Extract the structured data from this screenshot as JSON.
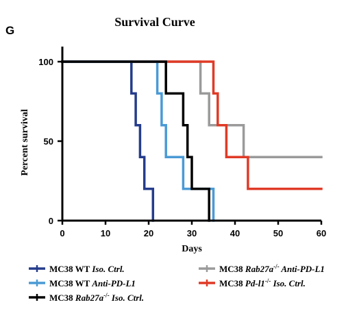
{
  "chart_data": {
    "type": "line",
    "panel_label": "G",
    "title": "Survival Curve",
    "xlabel": "Days",
    "ylabel": "Percent survival",
    "xlim": [
      0,
      60
    ],
    "ylim": [
      0,
      100
    ],
    "xticks": [
      "0",
      "10",
      "20",
      "30",
      "40",
      "50",
      "60"
    ],
    "yticks": [
      "0",
      "50",
      "100"
    ],
    "grid": false,
    "legend_position": "bottom",
    "series": [
      {
        "name": "MC38 WT Iso. Ctrl.",
        "legend_parts": [
          [
            "MC38 WT ",
            ""
          ],
          [
            "Iso. Ctrl.",
            "italic"
          ]
        ],
        "color": "#253c8c",
        "steps": [
          [
            0,
            100
          ],
          [
            16,
            80
          ],
          [
            17,
            60
          ],
          [
            18,
            40
          ],
          [
            19,
            20
          ],
          [
            21,
            0
          ]
        ],
        "end_x": 21
      },
      {
        "name": "MC38 WT Anti-PD-L1",
        "legend_parts": [
          [
            "MC38 WT ",
            ""
          ],
          [
            "Anti-PD-L1",
            "italic"
          ]
        ],
        "color": "#4a9ad5",
        "steps": [
          [
            0,
            100
          ],
          [
            22,
            80
          ],
          [
            23,
            60
          ],
          [
            24,
            40
          ],
          [
            28,
            20
          ],
          [
            35,
            0
          ]
        ],
        "end_x": 35
      },
      {
        "name": "MC38 Rab27a-/- Iso. Ctrl.",
        "legend_parts": [
          [
            "MC38 ",
            ""
          ],
          [
            "Rab27a",
            "italic"
          ],
          [
            "-/-",
            "sup"
          ],
          [
            " Iso. Ctrl.",
            "italic"
          ]
        ],
        "color": "#000000",
        "steps": [
          [
            0,
            100
          ],
          [
            24,
            80
          ],
          [
            28,
            60
          ],
          [
            29,
            40
          ],
          [
            30,
            20
          ],
          [
            34,
            0
          ]
        ],
        "end_x": 34
      },
      {
        "name": "MC38 Rab27a-/- Anti-PD-L1",
        "legend_parts": [
          [
            "MC38 ",
            ""
          ],
          [
            "Rab27a",
            "italic"
          ],
          [
            "-/-",
            "sup"
          ],
          [
            " Anti-PD-L1",
            "italic"
          ]
        ],
        "color": "#9a9a9a",
        "steps": [
          [
            0,
            100
          ],
          [
            32,
            80
          ],
          [
            34,
            60
          ],
          [
            42,
            40
          ]
        ],
        "end_x": 60
      },
      {
        "name": "MC38 Pd-l1-/- Iso. Ctrl.",
        "legend_parts": [
          [
            "MC38 ",
            ""
          ],
          [
            "Pd-l1",
            "italic"
          ],
          [
            "-/-",
            "sup"
          ],
          [
            " Iso. Ctrl.",
            "italic"
          ]
        ],
        "color": "#e03a26",
        "steps": [
          [
            0,
            100
          ],
          [
            35,
            80
          ],
          [
            36,
            60
          ],
          [
            38,
            40
          ],
          [
            43,
            20
          ]
        ],
        "end_x": 60
      }
    ]
  }
}
